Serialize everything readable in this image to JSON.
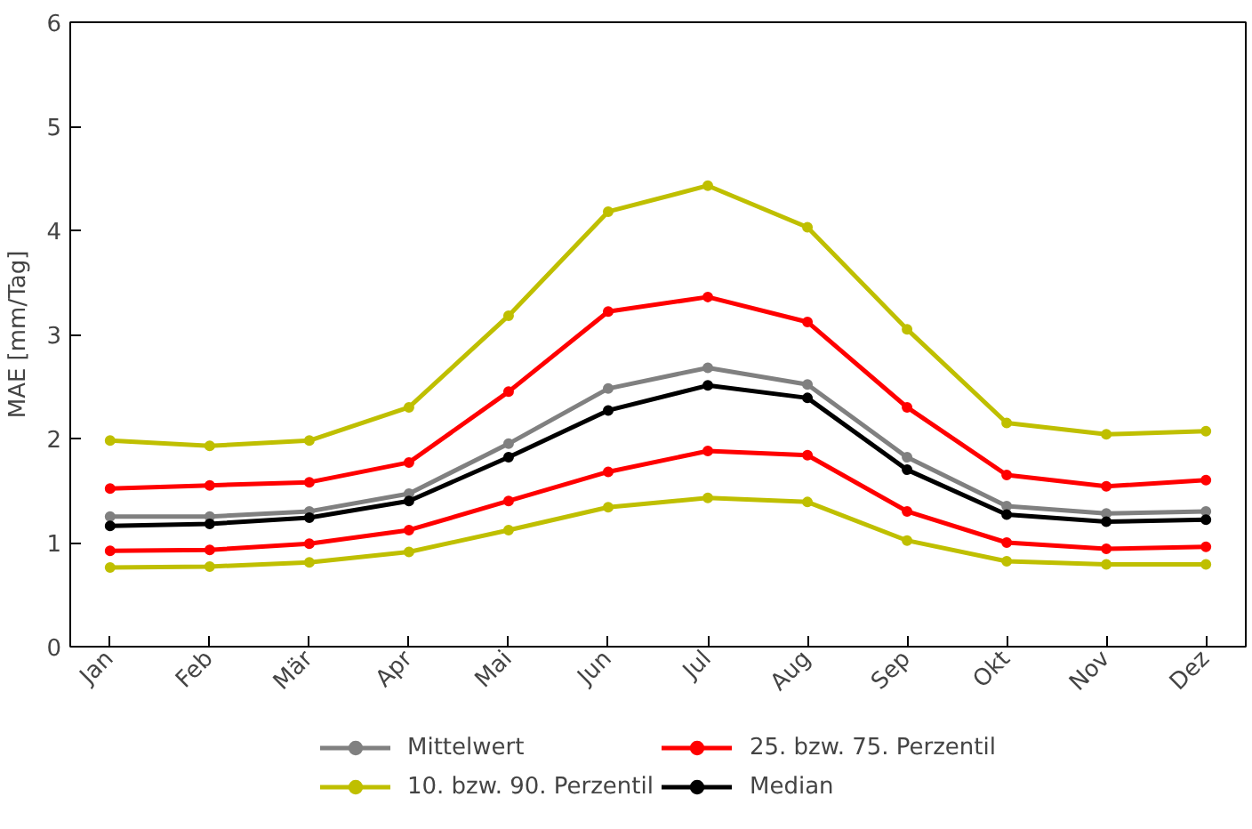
{
  "chart_data": {
    "type": "line",
    "ylabel": "MAE [mm/Tag]",
    "categories": [
      "Jan",
      "Feb",
      "Mär",
      "Apr",
      "Mai",
      "Jun",
      "Jul",
      "Aug",
      "Sep",
      "Okt",
      "Nov",
      "Dez"
    ],
    "ylim": [
      0,
      6
    ],
    "yticks": [
      0,
      1,
      2,
      3,
      4,
      5,
      6
    ],
    "grid": false,
    "legend": "bottom",
    "marker": "circle",
    "line_style": "solid",
    "series": [
      {
        "name": "Mittelwert",
        "color": "#808080",
        "values": [
          1.25,
          1.25,
          1.3,
          1.47,
          1.95,
          2.48,
          2.68,
          2.52,
          1.82,
          1.35,
          1.28,
          1.3
        ]
      },
      {
        "name": "25. bzw. 75. Perzentil",
        "color": "#ff0000",
        "values": [
          1.52,
          1.55,
          1.58,
          1.77,
          2.45,
          3.22,
          3.36,
          3.12,
          2.3,
          1.65,
          1.54,
          1.6
        ]
      },
      {
        "name": "10. bzw. 90. Perzentil",
        "color": "#bfbf00",
        "values": [
          1.98,
          1.93,
          1.98,
          2.3,
          3.18,
          4.18,
          4.43,
          4.03,
          3.05,
          2.15,
          2.04,
          2.07
        ]
      },
      {
        "name": "Median",
        "color": "#000000",
        "values": [
          1.16,
          1.18,
          1.24,
          1.4,
          1.82,
          2.27,
          2.51,
          2.39,
          1.7,
          1.27,
          1.2,
          1.22
        ]
      },
      {
        "color": "#ff0000",
        "values": [
          0.92,
          0.93,
          0.99,
          1.12,
          1.4,
          1.68,
          1.88,
          1.84,
          1.3,
          1.0,
          0.94,
          0.96
        ]
      },
      {
        "color": "#bfbf00",
        "values": [
          0.76,
          0.77,
          0.81,
          0.91,
          1.12,
          1.34,
          1.43,
          1.39,
          1.02,
          0.82,
          0.79,
          0.79
        ]
      }
    ]
  }
}
